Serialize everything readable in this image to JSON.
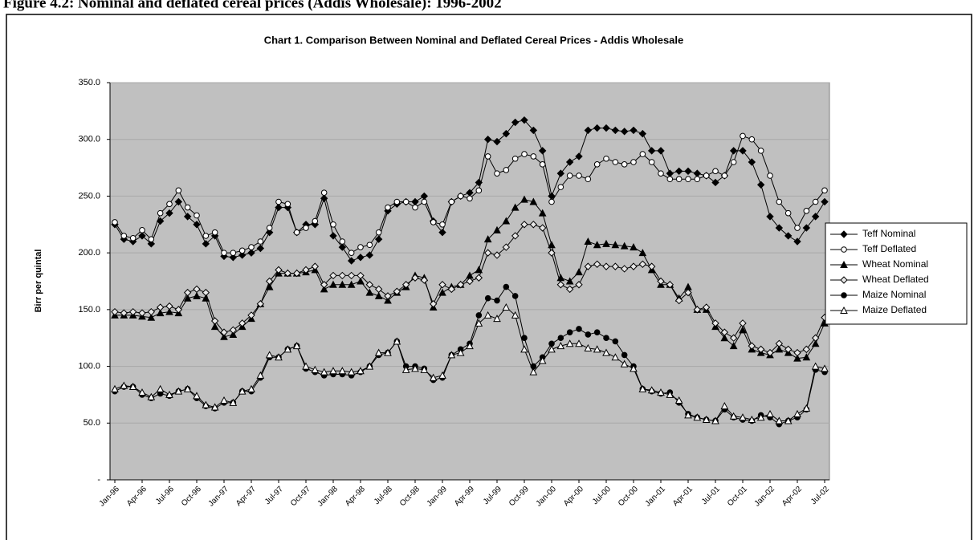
{
  "caption": "Figure 4.2: Nominal and deflated cereal prices (Addis Wholesale): 1996-2002",
  "chart_data": {
    "type": "line",
    "title": "Chart 1.  Comparison Between Nominal and Deflated Cereal Prices - Addis Wholesale",
    "y_label": "Birr per quintal",
    "categories": [
      "Jan-96",
      null,
      null,
      "Apr-96",
      null,
      null,
      "Jul-96",
      null,
      null,
      "Oct-96",
      null,
      null,
      "Jan-97",
      null,
      null,
      "Apr-97",
      null,
      null,
      "Jul-97",
      null,
      null,
      "Oct-97",
      null,
      null,
      "Jan-98",
      null,
      null,
      "Apr-98",
      null,
      null,
      "Jul-98",
      null,
      null,
      "Oct-98",
      null,
      null,
      "Jan-99",
      null,
      null,
      "Apr-99",
      null,
      null,
      "Jul-99",
      null,
      null,
      "Oct-99",
      null,
      null,
      "Jan-00",
      null,
      null,
      "Apr-00",
      null,
      null,
      "Jul-00",
      null,
      null,
      "Oct-00",
      null,
      null,
      "Jan-01",
      null,
      null,
      "Apr-01",
      null,
      null,
      "Jul-01",
      null,
      null,
      "Oct-01",
      null,
      null,
      "Jan-02",
      null,
      null,
      "Apr-02",
      null,
      null,
      "Jul-02"
    ],
    "ylim": [
      0,
      350
    ],
    "yticks": [
      {
        "value": 0,
        "label": "-"
      },
      {
        "value": 50,
        "label": "50.0"
      },
      {
        "value": 100,
        "label": "100.0"
      },
      {
        "value": 150,
        "label": "150.0"
      },
      {
        "value": 200,
        "label": "200.0"
      },
      {
        "value": 250,
        "label": "250.0"
      },
      {
        "value": 300,
        "label": "300.0"
      },
      {
        "value": 350,
        "label": "350.0"
      }
    ],
    "grid": true,
    "legend": "right",
    "background": "#c0c0c0",
    "series": [
      {
        "name": "Teff Nominal",
        "color": "#000000",
        "marker": "diamond-filled",
        "values": [
          225,
          212,
          210,
          215,
          208,
          228,
          235,
          245,
          232,
          225,
          208,
          215,
          197,
          196,
          198,
          200,
          204,
          218,
          240,
          240,
          218,
          225,
          225,
          248,
          215,
          205,
          193,
          196,
          198,
          212,
          237,
          243,
          245,
          245,
          250,
          228,
          218,
          245,
          250,
          253,
          262,
          300,
          298,
          305,
          315,
          317,
          308,
          290,
          250,
          270,
          280,
          285,
          308,
          310,
          310,
          308,
          307,
          308,
          305,
          290,
          290,
          270,
          272,
          272,
          270,
          268,
          262,
          268,
          290,
          290,
          280,
          260,
          232,
          222,
          215,
          210,
          222,
          232,
          245
        ]
      },
      {
        "name": "Teff Deflated",
        "color": "#000000",
        "marker": "circle-open",
        "values": [
          227,
          215,
          213,
          220,
          212,
          235,
          243,
          255,
          240,
          233,
          215,
          218,
          200,
          200,
          202,
          205,
          210,
          222,
          245,
          243,
          218,
          222,
          228,
          253,
          225,
          210,
          200,
          205,
          207,
          218,
          240,
          245,
          245,
          240,
          245,
          227,
          225,
          245,
          250,
          248,
          255,
          285,
          270,
          273,
          283,
          287,
          285,
          278,
          245,
          258,
          268,
          268,
          265,
          278,
          283,
          280,
          278,
          280,
          287,
          280,
          270,
          265,
          265,
          265,
          265,
          268,
          272,
          268,
          280,
          303,
          300,
          290,
          268,
          245,
          235,
          222,
          237,
          245,
          255
        ]
      },
      {
        "name": "Wheat Nominal",
        "color": "#000000",
        "marker": "triangle-filled",
        "values": [
          145,
          145,
          145,
          144,
          143,
          147,
          148,
          147,
          160,
          162,
          160,
          135,
          126,
          128,
          135,
          142,
          155,
          170,
          182,
          182,
          182,
          183,
          185,
          168,
          172,
          172,
          172,
          175,
          165,
          162,
          158,
          165,
          170,
          180,
          178,
          152,
          165,
          170,
          172,
          180,
          185,
          212,
          220,
          228,
          240,
          247,
          245,
          235,
          207,
          178,
          175,
          183,
          210,
          207,
          208,
          207,
          206,
          205,
          200,
          185,
          172,
          172,
          160,
          170,
          150,
          150,
          135,
          125,
          118,
          132,
          115,
          112,
          110,
          115,
          112,
          107,
          108,
          120,
          138
        ]
      },
      {
        "name": "Wheat Deflated",
        "color": "#000000",
        "marker": "diamond-open",
        "values": [
          148,
          147,
          148,
          147,
          148,
          152,
          153,
          150,
          165,
          168,
          165,
          140,
          130,
          132,
          138,
          145,
          155,
          175,
          185,
          182,
          182,
          185,
          188,
          172,
          180,
          180,
          180,
          180,
          172,
          168,
          162,
          166,
          172,
          178,
          176,
          155,
          172,
          168,
          172,
          175,
          178,
          200,
          198,
          205,
          215,
          225,
          225,
          222,
          200,
          172,
          168,
          172,
          188,
          190,
          188,
          188,
          186,
          188,
          190,
          188,
          175,
          172,
          158,
          165,
          150,
          152,
          138,
          130,
          125,
          138,
          118,
          115,
          112,
          120,
          115,
          112,
          115,
          125,
          143
        ]
      },
      {
        "name": "Maize Nominal",
        "color": "#000000",
        "marker": "circle-filled",
        "values": [
          78,
          82,
          82,
          75,
          72,
          76,
          74,
          78,
          80,
          72,
          65,
          63,
          68,
          68,
          78,
          78,
          90,
          108,
          108,
          115,
          118,
          98,
          95,
          92,
          93,
          93,
          92,
          95,
          100,
          110,
          112,
          122,
          100,
          100,
          98,
          88,
          90,
          110,
          115,
          120,
          145,
          160,
          158,
          170,
          162,
          125,
          100,
          108,
          120,
          125,
          130,
          133,
          128,
          130,
          125,
          122,
          110,
          100,
          80,
          78,
          76,
          77,
          68,
          58,
          55,
          53,
          52,
          62,
          55,
          53,
          52,
          57,
          55,
          49,
          52,
          55,
          62,
          97,
          95
        ]
      },
      {
        "name": "Maize Deflated",
        "color": "#000000",
        "marker": "triangle-open",
        "values": [
          80,
          83,
          82,
          77,
          73,
          80,
          75,
          78,
          80,
          74,
          66,
          64,
          70,
          68,
          78,
          80,
          92,
          110,
          108,
          115,
          118,
          100,
          97,
          95,
          96,
          96,
          95,
          96,
          100,
          112,
          112,
          122,
          97,
          98,
          97,
          90,
          92,
          110,
          112,
          118,
          138,
          145,
          142,
          152,
          145,
          115,
          95,
          105,
          115,
          118,
          120,
          120,
          116,
          115,
          112,
          108,
          102,
          98,
          80,
          79,
          77,
          75,
          70,
          57,
          55,
          53,
          52,
          65,
          56,
          55,
          53,
          55,
          58,
          52,
          52,
          58,
          63,
          100,
          98
        ]
      }
    ]
  }
}
